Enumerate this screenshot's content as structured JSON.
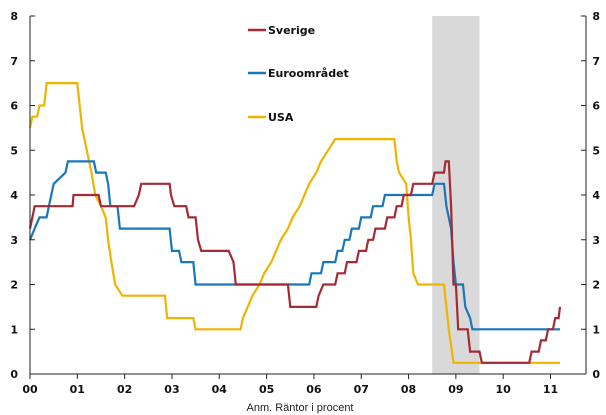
{
  "chart_data": {
    "type": "line",
    "title": "",
    "xlabel": "",
    "ylabel": "",
    "note": "Anm. Räntor i procent",
    "xlim": [
      2000.0,
      2011.75
    ],
    "ylim": [
      0,
      8
    ],
    "y_ticks": [
      0,
      1,
      2,
      3,
      4,
      5,
      6,
      7,
      8
    ],
    "x_ticks": [
      {
        "value": 2000,
        "label": "00"
      },
      {
        "value": 2001,
        "label": "01"
      },
      {
        "value": 2002,
        "label": "02"
      },
      {
        "value": 2003,
        "label": "03"
      },
      {
        "value": 2004,
        "label": "04"
      },
      {
        "value": 2005,
        "label": "05"
      },
      {
        "value": 2006,
        "label": "06"
      },
      {
        "value": 2007,
        "label": "07"
      },
      {
        "value": 2008,
        "label": "08"
      },
      {
        "value": 2009,
        "label": "09"
      },
      {
        "value": 2010,
        "label": "10"
      },
      {
        "value": 2011,
        "label": "11"
      }
    ],
    "shaded_region": [
      2008.5,
      2009.5
    ],
    "legend_placement": "top-center",
    "grid": false,
    "series": [
      {
        "name": "Sverige",
        "color": "#a52a34",
        "points": [
          [
            2000.0,
            3.25
          ],
          [
            2000.1,
            3.75
          ],
          [
            2000.9,
            3.75
          ],
          [
            2000.92,
            4.0
          ],
          [
            2001.45,
            4.0
          ],
          [
            2001.5,
            3.75
          ],
          [
            2002.2,
            3.75
          ],
          [
            2002.3,
            4.0
          ],
          [
            2002.35,
            4.25
          ],
          [
            2002.95,
            4.25
          ],
          [
            2002.98,
            4.0
          ],
          [
            2003.05,
            3.75
          ],
          [
            2003.3,
            3.75
          ],
          [
            2003.35,
            3.5
          ],
          [
            2003.5,
            3.5
          ],
          [
            2003.55,
            3.0
          ],
          [
            2003.62,
            2.75
          ],
          [
            2004.2,
            2.75
          ],
          [
            2004.3,
            2.5
          ],
          [
            2004.35,
            2.0
          ],
          [
            2005.45,
            2.0
          ],
          [
            2005.5,
            1.5
          ],
          [
            2006.05,
            1.5
          ],
          [
            2006.1,
            1.75
          ],
          [
            2006.2,
            2.0
          ],
          [
            2006.45,
            2.0
          ],
          [
            2006.5,
            2.25
          ],
          [
            2006.65,
            2.25
          ],
          [
            2006.7,
            2.5
          ],
          [
            2006.9,
            2.5
          ],
          [
            2006.95,
            2.75
          ],
          [
            2007.1,
            2.75
          ],
          [
            2007.15,
            3.0
          ],
          [
            2007.25,
            3.0
          ],
          [
            2007.3,
            3.25
          ],
          [
            2007.5,
            3.25
          ],
          [
            2007.55,
            3.5
          ],
          [
            2007.7,
            3.5
          ],
          [
            2007.75,
            3.75
          ],
          [
            2007.85,
            3.75
          ],
          [
            2007.9,
            4.0
          ],
          [
            2008.05,
            4.0
          ],
          [
            2008.1,
            4.25
          ],
          [
            2008.5,
            4.25
          ],
          [
            2008.55,
            4.5
          ],
          [
            2008.75,
            4.5
          ],
          [
            2008.78,
            4.75
          ],
          [
            2008.85,
            4.75
          ],
          [
            2008.9,
            3.75
          ],
          [
            2008.95,
            2.0
          ],
          [
            2009.0,
            2.0
          ],
          [
            2009.05,
            1.0
          ],
          [
            2009.25,
            1.0
          ],
          [
            2009.3,
            0.5
          ],
          [
            2009.5,
            0.5
          ],
          [
            2009.55,
            0.25
          ],
          [
            2010.55,
            0.25
          ],
          [
            2010.6,
            0.5
          ],
          [
            2010.75,
            0.5
          ],
          [
            2010.8,
            0.75
          ],
          [
            2010.9,
            0.75
          ],
          [
            2010.95,
            1.0
          ],
          [
            2011.05,
            1.0
          ],
          [
            2011.1,
            1.25
          ],
          [
            2011.17,
            1.25
          ],
          [
            2011.2,
            1.5
          ]
        ]
      },
      {
        "name": "Euroområdet",
        "color": "#1a76ba",
        "points": [
          [
            2000.0,
            3.0
          ],
          [
            2000.1,
            3.25
          ],
          [
            2000.2,
            3.5
          ],
          [
            2000.35,
            3.5
          ],
          [
            2000.4,
            3.75
          ],
          [
            2000.5,
            4.25
          ],
          [
            2000.75,
            4.5
          ],
          [
            2000.8,
            4.75
          ],
          [
            2001.35,
            4.75
          ],
          [
            2001.4,
            4.5
          ],
          [
            2001.6,
            4.5
          ],
          [
            2001.65,
            4.25
          ],
          [
            2001.7,
            3.75
          ],
          [
            2001.85,
            3.75
          ],
          [
            2001.9,
            3.25
          ],
          [
            2002.95,
            3.25
          ],
          [
            2003.0,
            2.75
          ],
          [
            2003.15,
            2.75
          ],
          [
            2003.2,
            2.5
          ],
          [
            2003.45,
            2.5
          ],
          [
            2003.5,
            2.0
          ],
          [
            2005.9,
            2.0
          ],
          [
            2005.95,
            2.25
          ],
          [
            2006.15,
            2.25
          ],
          [
            2006.2,
            2.5
          ],
          [
            2006.45,
            2.5
          ],
          [
            2006.5,
            2.75
          ],
          [
            2006.6,
            2.75
          ],
          [
            2006.65,
            3.0
          ],
          [
            2006.75,
            3.0
          ],
          [
            2006.8,
            3.25
          ],
          [
            2006.95,
            3.25
          ],
          [
            2007.0,
            3.5
          ],
          [
            2007.2,
            3.5
          ],
          [
            2007.25,
            3.75
          ],
          [
            2007.45,
            3.75
          ],
          [
            2007.5,
            4.0
          ],
          [
            2008.5,
            4.0
          ],
          [
            2008.55,
            4.25
          ],
          [
            2008.75,
            4.25
          ],
          [
            2008.8,
            3.75
          ],
          [
            2008.9,
            3.25
          ],
          [
            2008.95,
            2.5
          ],
          [
            2009.0,
            2.0
          ],
          [
            2009.15,
            2.0
          ],
          [
            2009.2,
            1.5
          ],
          [
            2009.3,
            1.25
          ],
          [
            2009.35,
            1.0
          ],
          [
            2011.2,
            1.0
          ]
        ]
      },
      {
        "name": "USA",
        "color": "#f0b400",
        "points": [
          [
            2000.0,
            5.5
          ],
          [
            2000.05,
            5.75
          ],
          [
            2000.15,
            5.75
          ],
          [
            2000.2,
            6.0
          ],
          [
            2000.3,
            6.0
          ],
          [
            2000.35,
            6.5
          ],
          [
            2001.0,
            6.5
          ],
          [
            2001.05,
            6.0
          ],
          [
            2001.1,
            5.5
          ],
          [
            2001.2,
            5.0
          ],
          [
            2001.3,
            4.5
          ],
          [
            2001.38,
            4.0
          ],
          [
            2001.5,
            3.75
          ],
          [
            2001.6,
            3.5
          ],
          [
            2001.65,
            3.0
          ],
          [
            2001.72,
            2.5
          ],
          [
            2001.8,
            2.0
          ],
          [
            2001.95,
            1.75
          ],
          [
            2002.85,
            1.75
          ],
          [
            2002.9,
            1.25
          ],
          [
            2003.45,
            1.25
          ],
          [
            2003.5,
            1.0
          ],
          [
            2004.45,
            1.0
          ],
          [
            2004.5,
            1.25
          ],
          [
            2004.6,
            1.5
          ],
          [
            2004.7,
            1.75
          ],
          [
            2004.85,
            2.0
          ],
          [
            2004.95,
            2.25
          ],
          [
            2005.1,
            2.5
          ],
          [
            2005.2,
            2.75
          ],
          [
            2005.3,
            3.0
          ],
          [
            2005.45,
            3.25
          ],
          [
            2005.55,
            3.5
          ],
          [
            2005.7,
            3.75
          ],
          [
            2005.8,
            4.0
          ],
          [
            2005.9,
            4.25
          ],
          [
            2006.05,
            4.5
          ],
          [
            2006.15,
            4.75
          ],
          [
            2006.3,
            5.0
          ],
          [
            2006.45,
            5.25
          ],
          [
            2007.7,
            5.25
          ],
          [
            2007.75,
            4.75
          ],
          [
            2007.8,
            4.5
          ],
          [
            2007.95,
            4.25
          ],
          [
            2008.0,
            3.5
          ],
          [
            2008.05,
            3.0
          ],
          [
            2008.1,
            2.25
          ],
          [
            2008.2,
            2.0
          ],
          [
            2008.75,
            2.0
          ],
          [
            2008.8,
            1.5
          ],
          [
            2008.85,
            1.0
          ],
          [
            2008.95,
            0.25
          ],
          [
            2011.2,
            0.25
          ]
        ]
      }
    ]
  }
}
